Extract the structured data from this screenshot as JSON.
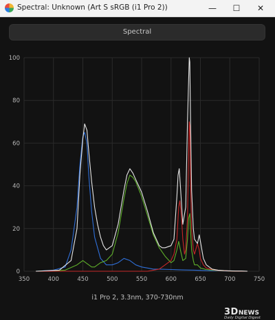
{
  "window": {
    "title": "Spectral: Unknown (Art S sRGB (i1 Pro 2))",
    "minimize_glyph": "—",
    "maximize_glyph": "☐",
    "close_glyph": "✕"
  },
  "toolbar": {
    "button_label": "Spectral"
  },
  "chart_data": {
    "type": "line",
    "xlabel": "i1 Pro 2, 3.3nm, 370-730nm",
    "ylabel": "",
    "xlim": [
      350,
      750
    ],
    "ylim": [
      0,
      100
    ],
    "x_ticks": [
      350,
      400,
      450,
      500,
      550,
      600,
      650,
      700,
      750
    ],
    "y_ticks": [
      0,
      20,
      40,
      60,
      80,
      100
    ],
    "grid": true,
    "series": [
      {
        "color": "#e8e8e8",
        "x": [
          370,
          410,
          430,
          440,
          445,
          450,
          453,
          457,
          460,
          465,
          470,
          475,
          480,
          485,
          490,
          500,
          510,
          520,
          525,
          530,
          535,
          540,
          550,
          560,
          570,
          580,
          585,
          590,
          600,
          605,
          610,
          612,
          614,
          616,
          620,
          625,
          628,
          630,
          631,
          632,
          633,
          635,
          638,
          640,
          645,
          648,
          650,
          655,
          660,
          670,
          680,
          690,
          700,
          710,
          720,
          730
        ],
        "y": [
          0,
          0.5,
          5,
          20,
          45,
          62,
          69,
          66,
          56,
          42,
          30,
          22,
          16,
          12,
          10,
          12,
          22,
          38,
          45,
          48,
          46,
          43,
          37,
          28,
          18,
          12,
          11,
          11,
          12,
          15,
          35,
          45,
          48,
          40,
          22,
          30,
          70,
          90,
          100,
          98,
          75,
          38,
          20,
          15,
          13,
          17,
          14,
          6,
          3,
          1,
          0.5,
          0.3,
          0.2,
          0.1,
          0.1,
          0
        ]
      },
      {
        "color": "#2f6fd8",
        "x": [
          370,
          400,
          420,
          430,
          440,
          445,
          450,
          453,
          457,
          460,
          465,
          470,
          480,
          490,
          500,
          510,
          520,
          530,
          540,
          550,
          560,
          570,
          580,
          600,
          620,
          640,
          660,
          700,
          730
        ],
        "y": [
          0,
          0.5,
          2,
          10,
          30,
          50,
          63,
          65,
          60,
          45,
          28,
          16,
          6,
          3,
          3,
          4,
          6,
          5,
          3,
          2,
          1.5,
          1,
          1,
          0.8,
          0.6,
          0.5,
          0.3,
          0.1,
          0
        ],
        "label_color": "blue"
      },
      {
        "color": "#5fb02a",
        "x": [
          370,
          420,
          440,
          450,
          455,
          460,
          465,
          470,
          480,
          490,
          500,
          510,
          520,
          525,
          530,
          535,
          540,
          550,
          560,
          570,
          580,
          590,
          600,
          605,
          610,
          613,
          616,
          620,
          625,
          628,
          630,
          632,
          633,
          635,
          638,
          640,
          645,
          650,
          660,
          680,
          700,
          730
        ],
        "y": [
          0,
          0.5,
          3,
          5,
          4,
          3,
          2,
          2,
          4,
          5,
          8,
          18,
          34,
          41,
          45,
          44,
          42,
          35,
          26,
          17,
          11,
          7,
          4,
          5,
          10,
          14,
          10,
          5,
          6,
          15,
          25,
          27,
          20,
          10,
          5,
          3,
          3,
          1.5,
          0.8,
          0.3,
          0.1,
          0
        ]
      },
      {
        "color": "#c82828",
        "x": [
          370,
          560,
          580,
          590,
          600,
          605,
          610,
          613,
          615,
          618,
          620,
          623,
          625,
          628,
          630,
          631,
          632,
          633,
          635,
          638,
          640,
          643,
          645,
          648,
          650,
          655,
          660,
          670,
          680,
          700,
          730
        ],
        "y": [
          0,
          0,
          1,
          3,
          5,
          8,
          15,
          30,
          33,
          25,
          15,
          8,
          10,
          25,
          55,
          70,
          68,
          45,
          20,
          10,
          8,
          11,
          13,
          10,
          6,
          3,
          1.5,
          0.8,
          0.4,
          0.1,
          0
        ]
      }
    ]
  },
  "watermark": {
    "logo": "3D",
    "logo_suffix": "NEWS",
    "tagline": "Daily Digital Digest"
  }
}
